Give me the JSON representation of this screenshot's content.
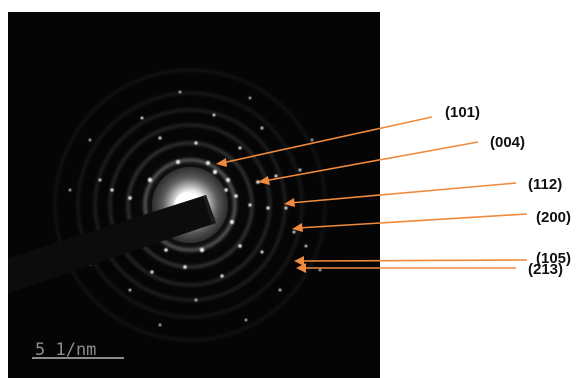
{
  "figure": {
    "scale_bar_label": "5 1/nm",
    "arrow_color": "#f08a3c",
    "labels": [
      "(101)",
      "(004)",
      "(112)",
      "(200)",
      "(105)",
      "(213)"
    ]
  }
}
